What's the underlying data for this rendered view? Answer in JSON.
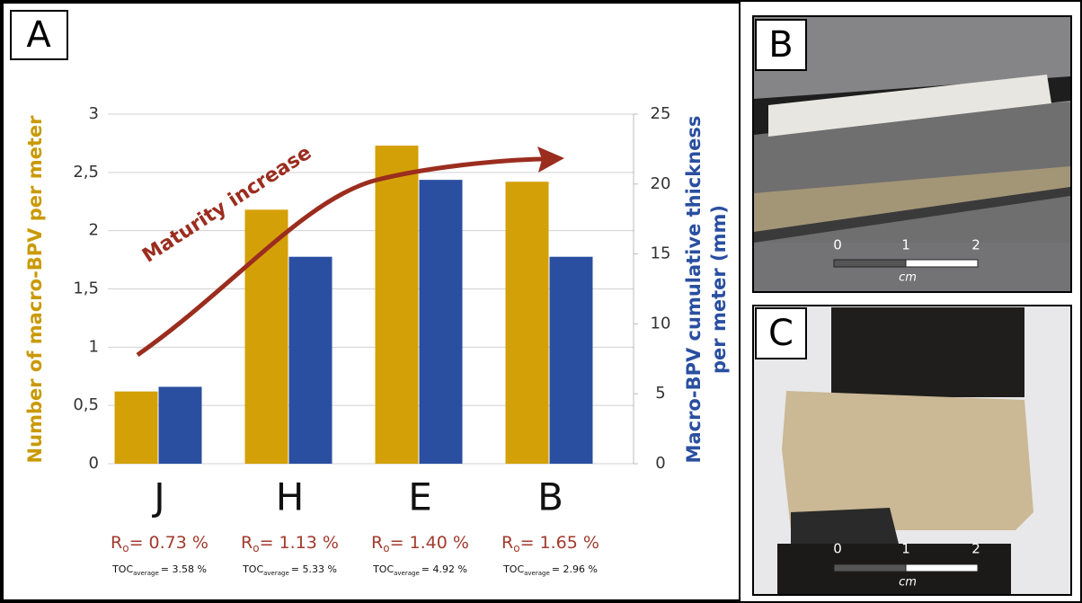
{
  "panels": {
    "a": "A",
    "b": "B",
    "c": "C"
  },
  "chart_data": {
    "type": "bar",
    "categories": [
      "J",
      "H",
      "E",
      "B"
    ],
    "series": [
      {
        "color": "#d4a007",
        "values": [
          0.62,
          2.18,
          2.73,
          2.42
        ]
      },
      {
        "color": "#2a4fa0",
        "axis": "y2",
        "values": [
          5.5,
          14.8,
          20.3,
          14.8
        ]
      }
    ],
    "ylim": [
      0,
      3
    ],
    "yticks": [
      0,
      {
        "value": 0.5,
        "label": "0,5"
      },
      1,
      {
        "value": 1.5,
        "label": "1,5"
      },
      2,
      {
        "value": 2.5,
        "label": "2,5"
      },
      3
    ],
    "y2lim": [
      0,
      25
    ],
    "y2ticks": [
      0,
      5,
      10,
      15,
      20,
      25
    ],
    "ylabel": "Number of macro-BPV per meter",
    "y2label": [
      "Macro-BPV cumulative thickness",
      "per meter (mm)"
    ],
    "grid": true,
    "annotation": "Maturity increase",
    "ro_symbol": "R",
    "ro_subscript": "o",
    "ro_labels": [
      "= 0.73 %",
      "= 1.13 %",
      "= 1.40 %",
      "= 1.65 %"
    ],
    "toc_symbol": "TOC",
    "toc_subscript": "average",
    "toc_labels": [
      "= 3.58 %",
      "= 5.33 %",
      "= 4.92 %",
      "= 2.96 %"
    ]
  },
  "photos": {
    "scale_ticks": [
      "0",
      "1",
      "2"
    ],
    "scale_unit": "cm"
  }
}
